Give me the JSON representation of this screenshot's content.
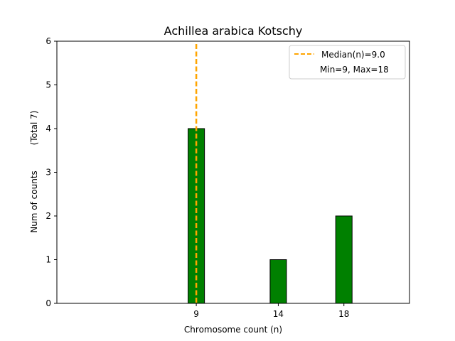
{
  "chart_data": {
    "type": "bar",
    "title": "Achillea arabica Kotschy",
    "xlabel": "Chromosome count (n)",
    "ylabel": "Num of counts",
    "ylabel_total": "(Total 7)",
    "categories": [
      "9",
      "14",
      "18"
    ],
    "x": [
      9,
      14,
      18
    ],
    "values": [
      4,
      1,
      2
    ],
    "xlim": [
      0.5,
      22
    ],
    "ylim": [
      0,
      6
    ],
    "yticks": [
      0,
      1,
      2,
      3,
      4,
      5,
      6
    ],
    "bar_color": "#008000",
    "median_line": {
      "value": 9.0,
      "label": "Median(n)=9.0",
      "color": "#FFA500"
    },
    "range_label": "Min=9, Max=18",
    "legend_position": "top-right",
    "grid": false
  }
}
